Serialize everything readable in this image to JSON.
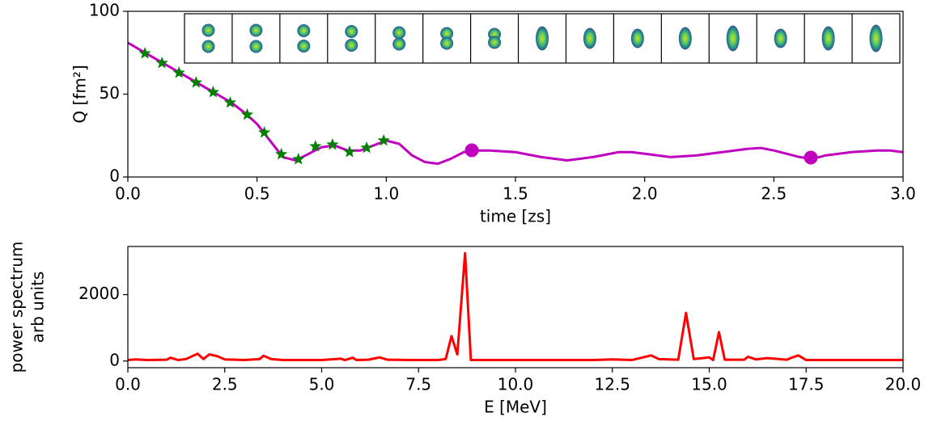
{
  "chart_data": [
    {
      "type": "line",
      "xlabel": "time [zs]",
      "ylabel": "Q [fm²]",
      "xlim": [
        0,
        3
      ],
      "ylim": [
        0,
        100
      ],
      "xticks": [
        {
          "value": 0,
          "label": "0.0"
        },
        {
          "value": 0.5,
          "label": "0.5"
        },
        {
          "value": 1,
          "label": "1.0"
        },
        {
          "value": 1.5,
          "label": "1.5"
        },
        {
          "value": 2,
          "label": "2.0"
        },
        {
          "value": 2.5,
          "label": "2.5"
        },
        {
          "value": 3,
          "label": "3.0"
        }
      ],
      "yticks": [
        0,
        50,
        100
      ],
      "series": [
        {
          "style": "line",
          "color": "#bf00bf",
          "x": [
            0,
            0.1,
            0.2,
            0.3,
            0.4,
            0.45,
            0.5,
            0.55,
            0.6,
            0.65,
            0.7,
            0.75,
            0.8,
            0.85,
            0.9,
            0.95,
            1.0,
            1.05,
            1.1,
            1.15,
            1.2,
            1.25,
            1.3,
            1.35,
            1.4,
            1.5,
            1.6,
            1.7,
            1.8,
            1.9,
            1.95,
            2.0,
            2.1,
            2.2,
            2.3,
            2.4,
            2.45,
            2.5,
            2.6,
            2.65,
            2.7,
            2.8,
            2.9,
            2.95,
            3.0
          ],
          "values": [
            81,
            72,
            63,
            54,
            45,
            39,
            32,
            22,
            12,
            10,
            14,
            18,
            19,
            16,
            16,
            19,
            22,
            20,
            13,
            9,
            8,
            11,
            15,
            16,
            16,
            15,
            12,
            10,
            12,
            15,
            15,
            14,
            12,
            13,
            15,
            17,
            17.5,
            16,
            12,
            11,
            13,
            15,
            16,
            16,
            15
          ]
        },
        {
          "style": "star",
          "color": "#007f00",
          "x": [
            0.066,
            0.132,
            0.198,
            0.264,
            0.33,
            0.396,
            0.462,
            0.528,
            0.594,
            0.66,
            0.726,
            0.792,
            0.858,
            0.924,
            0.99
          ],
          "values": [
            74.6,
            68.8,
            62.9,
            57,
            51.2,
            44.9,
            37.6,
            26.8,
            13.7,
            10.7,
            18.5,
            19.5,
            15.1,
            17.6,
            22
          ]
        },
        {
          "style": "dot",
          "color": "#bf00bf",
          "x": [
            1.331,
            2.643
          ],
          "values": [
            16.1,
            11.7
          ]
        }
      ]
    },
    {
      "type": "line",
      "xlabel": "E [MeV]",
      "ylabel": [
        "power spectrum",
        "arb units"
      ],
      "xlim": [
        0,
        20
      ],
      "ylim": [
        -200,
        3450
      ],
      "xticks": [
        {
          "value": 0,
          "label": "0.0"
        },
        {
          "value": 2.5,
          "label": "2.5"
        },
        {
          "value": 5,
          "label": "5.0"
        },
        {
          "value": 7.5,
          "label": "7.5"
        },
        {
          "value": 10,
          "label": "10.0"
        },
        {
          "value": 12.5,
          "label": "12.5"
        },
        {
          "value": 15,
          "label": "15.0"
        },
        {
          "value": 17.5,
          "label": "17.5"
        },
        {
          "value": 20,
          "label": "20.0"
        }
      ],
      "yticks": [
        0,
        2000
      ],
      "series": [
        {
          "style": "line",
          "color": "#ff0000",
          "x": [
            0,
            0.2,
            0.5,
            1.0,
            1.1,
            1.3,
            1.5,
            1.8,
            1.95,
            2.1,
            2.3,
            2.5,
            3.0,
            3.4,
            3.5,
            3.7,
            4.0,
            5.0,
            5.5,
            5.6,
            5.8,
            5.9,
            6.2,
            6.5,
            6.7,
            7.5,
            8.0,
            8.2,
            8.35,
            8.5,
            8.7,
            8.85,
            9.0,
            12.0,
            12.5,
            13.0,
            13.5,
            13.7,
            14.2,
            14.4,
            14.6,
            15.0,
            15.1,
            15.25,
            15.4,
            15.9,
            16.0,
            16.2,
            16.5,
            17.0,
            17.1,
            17.3,
            17.5,
            18.0,
            20.0
          ],
          "values": [
            30,
            50,
            30,
            40,
            100,
            30,
            60,
            220,
            60,
            200,
            150,
            50,
            30,
            60,
            160,
            60,
            30,
            30,
            70,
            30,
            100,
            30,
            40,
            110,
            40,
            30,
            30,
            60,
            750,
            200,
            3250,
            30,
            30,
            30,
            50,
            30,
            170,
            60,
            40,
            1450,
            60,
            110,
            30,
            870,
            40,
            40,
            130,
            50,
            90,
            40,
            90,
            170,
            30,
            30,
            30
          ]
        }
      ]
    }
  ]
}
